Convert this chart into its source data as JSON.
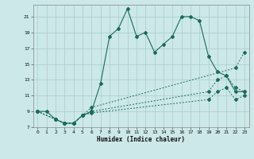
{
  "xlabel": "Humidex (Indice chaleur)",
  "bg_color": "#cce8e8",
  "grid_color": "#aacccc",
  "line_color": "#1a6b5a",
  "xlim": [
    -0.5,
    23.5
  ],
  "ylim": [
    7,
    22.5
  ],
  "yticks": [
    7,
    9,
    11,
    13,
    15,
    17,
    19,
    21
  ],
  "xticks": [
    0,
    1,
    2,
    3,
    4,
    5,
    6,
    7,
    8,
    9,
    10,
    11,
    12,
    13,
    14,
    15,
    16,
    17,
    18,
    19,
    20,
    21,
    22,
    23
  ],
  "series1_x": [
    0,
    1,
    2,
    3,
    4,
    5,
    6,
    7,
    8,
    9,
    10,
    11,
    12,
    13,
    14,
    15,
    16,
    17,
    18,
    19,
    20,
    21,
    22,
    23
  ],
  "series1_y": [
    9,
    9,
    8,
    7.5,
    7.5,
    8.5,
    9,
    12.5,
    18.5,
    19.5,
    22,
    18.5,
    19,
    16.5,
    17.5,
    18.5,
    21,
    21,
    20.5,
    16,
    14,
    13.5,
    11.5,
    11.5
  ],
  "series2_x": [
    0,
    2,
    3,
    4,
    5,
    6,
    22,
    23
  ],
  "series2_y": [
    9,
    8,
    7.5,
    7.5,
    8.5,
    9.5,
    14.5,
    16.5
  ],
  "series3_x": [
    0,
    2,
    3,
    4,
    5,
    6,
    19,
    20,
    21,
    22,
    23
  ],
  "series3_y": [
    9,
    8,
    7.5,
    7.5,
    8.5,
    9.0,
    11.5,
    13.0,
    13.5,
    12.0,
    11.5
  ],
  "series4_x": [
    0,
    2,
    3,
    4,
    5,
    6,
    19,
    20,
    21,
    22,
    23
  ],
  "series4_y": [
    9,
    8,
    7.5,
    7.5,
    8.5,
    8.8,
    10.5,
    11.5,
    12.0,
    10.5,
    11.0
  ]
}
